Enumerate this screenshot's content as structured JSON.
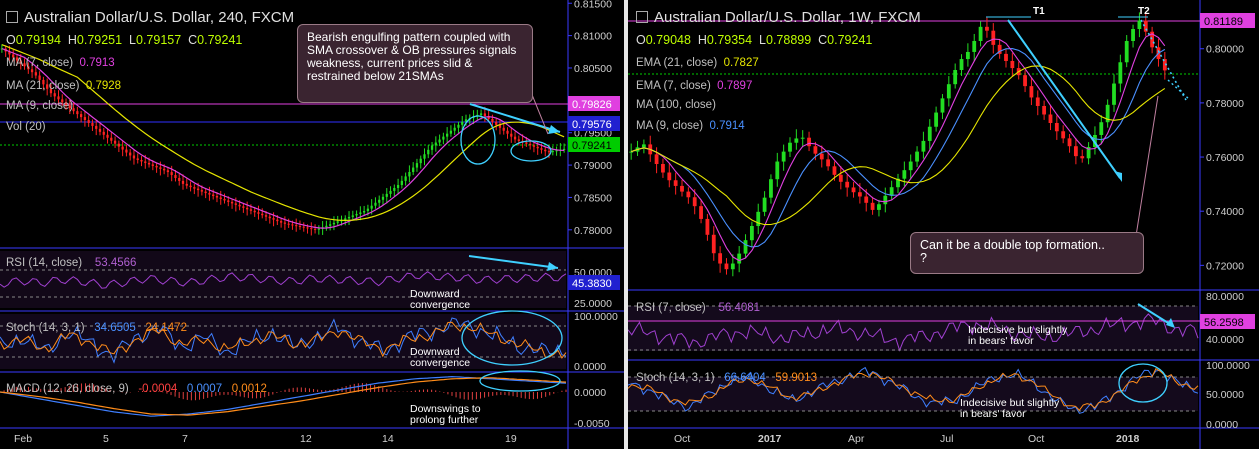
{
  "left": {
    "title": "Australian Dollar/U.S. Dollar, 240, FXCM",
    "ohlc": {
      "o": "0.79194",
      "h": "0.79251",
      "l": "0.79157",
      "c": "0.79241"
    },
    "ma": [
      {
        "label": "MA (7, close)",
        "value": "0.7913",
        "color": "#e040e0"
      },
      {
        "label": "MA (21, close)",
        "value": "0.7928",
        "color": "#e6e600"
      },
      {
        "label": "MA (9, close)",
        "value": "",
        "color": ""
      },
      {
        "label": "Vol (20)",
        "value": "",
        "color": ""
      }
    ],
    "callout": "Bearish engulfing pattern coupled with SMA crossover & OB pressures signals weakness, current prices slid & restrained below 21SMAs",
    "price_ticks": [
      "0.81500",
      "0.81000",
      "0.80500",
      "0.80000",
      "0.79500",
      "0.79000",
      "0.78500",
      "0.78000"
    ],
    "price_tags": [
      {
        "text": "0.79826",
        "bg": "#e040e0",
        "fg": "#ffffff"
      },
      {
        "text": "0.79576",
        "bg": "#2020d0",
        "fg": "#ffffff"
      },
      {
        "text": "0.79241",
        "bg": "#00cc00",
        "fg": "#000000"
      }
    ],
    "rsi": {
      "label": "RSI (14, close)",
      "value": "53.4566",
      "tick_hi": "50.0000",
      "tag": "45.3830",
      "tick_lo": "25.0000",
      "note": "Downward\nconvergence"
    },
    "stoch": {
      "label": "Stoch (14, 3, 1)",
      "k": "34.6505",
      "d": "24.1472",
      "tick_hi": "100.0000",
      "tick_lo": "0.0000",
      "note": "Downward\nconvergence"
    },
    "macd": {
      "label": "MACD (12, 26, close, 9)",
      "v1": "-0.0004",
      "v2": "0.0007",
      "v3": "0.0012",
      "tick_hi": "0.0000",
      "tick_lo": "-0.0050",
      "note": "Downswings to\nprolong further"
    },
    "x_labels": [
      "Feb",
      "5",
      "7",
      "12",
      "14",
      "19"
    ]
  },
  "right": {
    "title": "Australian Dollar/U.S. Dollar, 1W, FXCM",
    "ohlc": {
      "o": "0.79048",
      "h": "0.79354",
      "l": "0.78899",
      "c": "0.79241"
    },
    "ma": [
      {
        "label": "EMA (21, close)",
        "value": "0.7827",
        "color": "#e6e600"
      },
      {
        "label": "EMA (7, close)",
        "value": "0.7897",
        "color": "#e040e0"
      },
      {
        "label": "MA (100, close)",
        "value": "",
        "color": ""
      },
      {
        "label": "MA (9, close)",
        "value": "0.7914",
        "color": "#4a90ff"
      }
    ],
    "markers": [
      "T1",
      "T2"
    ],
    "callout": "Can it be a double top formation..\n?",
    "price_ticks": [
      "0.80000",
      "0.78000",
      "0.76000",
      "0.74000",
      "0.72000"
    ],
    "price_tag": {
      "text": "0.81189",
      "bg": "#e040e0",
      "fg": "#000000"
    },
    "rsi": {
      "label": "RSI (7, close)",
      "value": "56.4081",
      "tick_hi": "80.0000",
      "tag": "56.2598",
      "tick_lo": "40.0000",
      "note": "Indecisive but slightly\nin bears' favor"
    },
    "stoch": {
      "label": "Stoch (14, 3, 1)",
      "k": "66.6404",
      "d": "59.9013",
      "tick_hi": "100.0000",
      "tick_mid": "50.0000",
      "tick_lo": "0.0000",
      "note": "Indecisive but slightly\nin bears' favor"
    },
    "x_labels": [
      "Oct",
      "2017",
      "Apr",
      "Jul",
      "Oct",
      "2018"
    ]
  },
  "chart_data": [
    {
      "type": "line",
      "title": "Australian Dollar/U.S. Dollar, 240, FXCM",
      "y_range": [
        0.7775,
        0.8155
      ],
      "series": [
        {
          "name": "",
          "values": [
            0.808,
            0.806,
            0.804,
            0.801,
            0.799,
            0.797,
            0.795,
            0.793,
            0.791,
            0.79,
            0.789,
            0.787,
            0.786,
            0.785,
            0.784,
            0.783,
            0.782,
            0.781,
            0.7805,
            0.78,
            0.781,
            0.782,
            0.783,
            0.785,
            0.787,
            0.79,
            0.793,
            0.795,
            0.797,
            0.798,
            0.796,
            0.794,
            0.793,
            0.792,
            0.7925
          ]
        }
      ]
    },
    {
      "type": "line",
      "title": "Australian Dollar/U.S. Dollar, 1W, FXCM",
      "y_range": [
        0.712,
        0.818
      ],
      "series": [
        {
          "name": "",
          "values": [
            0.762,
            0.765,
            0.758,
            0.752,
            0.748,
            0.744,
            0.735,
            0.722,
            0.718,
            0.725,
            0.735,
            0.745,
            0.758,
            0.765,
            0.768,
            0.762,
            0.758,
            0.752,
            0.748,
            0.745,
            0.74,
            0.746,
            0.752,
            0.758,
            0.765,
            0.775,
            0.785,
            0.795,
            0.8,
            0.81,
            0.8,
            0.795,
            0.79,
            0.782,
            0.776,
            0.77,
            0.765,
            0.758,
            0.766,
            0.775,
            0.79,
            0.805,
            0.811,
            0.8,
            0.792
          ]
        }
      ]
    }
  ]
}
